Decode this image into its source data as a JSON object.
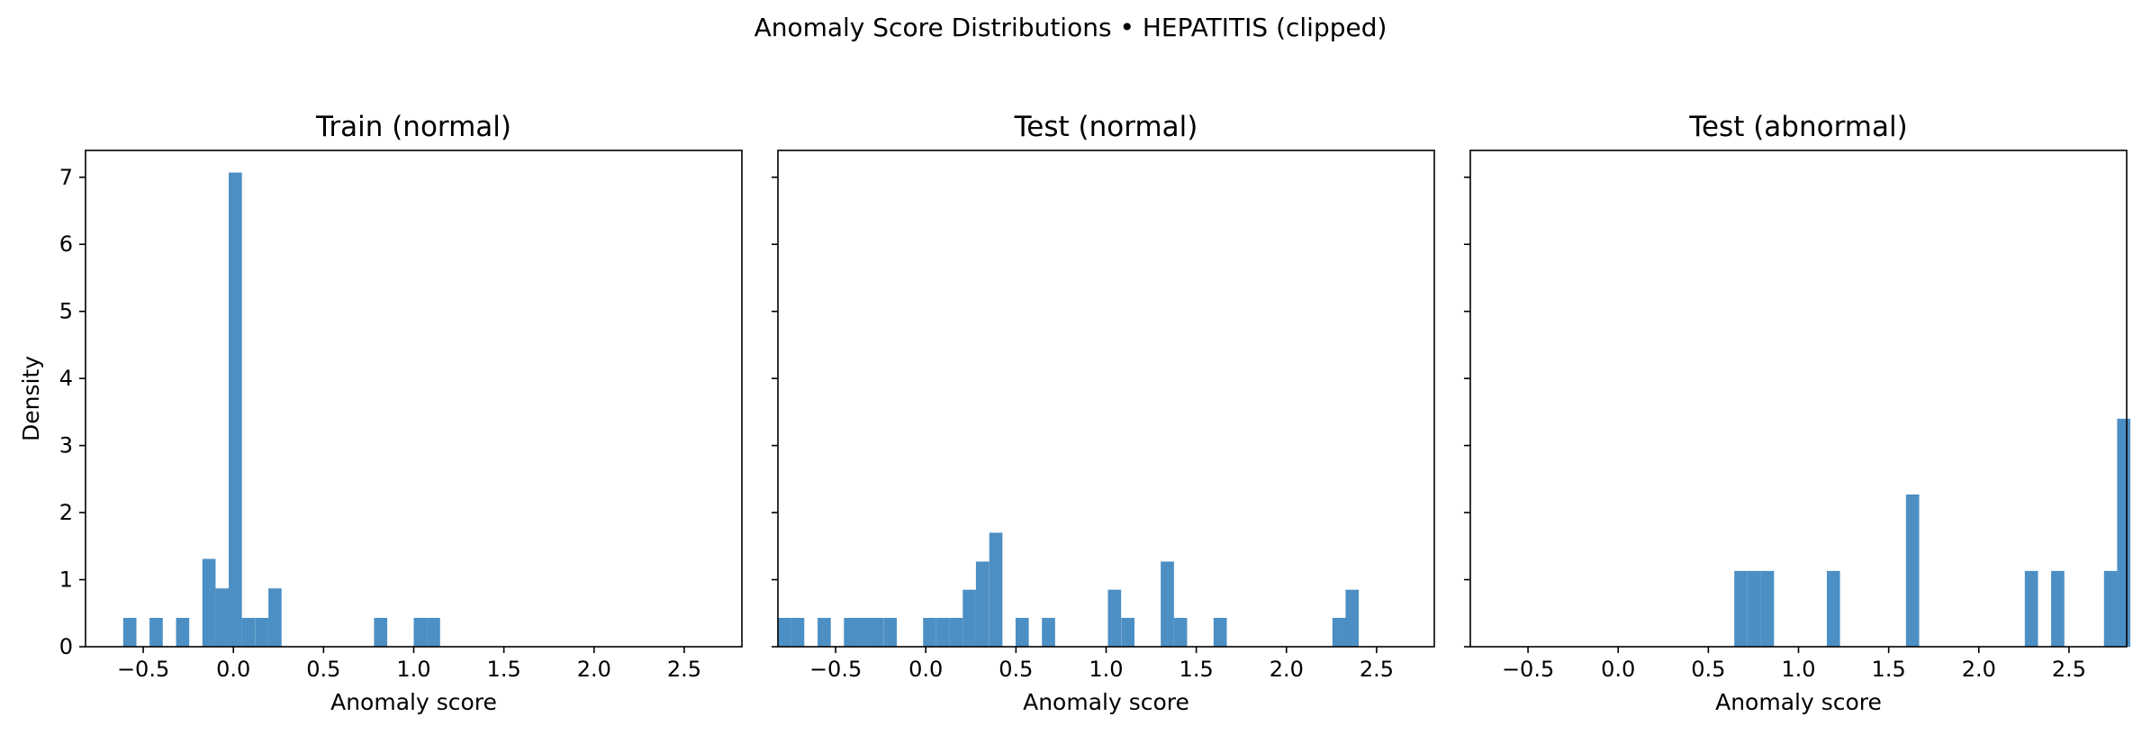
{
  "suptitle": "Anomaly Score Distributions • HEPATITIS (clipped)",
  "colors": {
    "bar": "#4c8fc4",
    "axis": "#000000"
  },
  "chart_data": [
    {
      "type": "bar",
      "title": "Train (normal)",
      "xlabel": "Anomaly score",
      "ylabel": "Density",
      "xlim": [
        -0.82,
        2.82
      ],
      "ylim": [
        0,
        7.4
      ],
      "xticks": [
        -0.5,
        0.0,
        0.5,
        1.0,
        1.5,
        2.0,
        2.5
      ],
      "xtick_labels": [
        "−0.5",
        "0.0",
        "0.5",
        "1.0",
        "1.5",
        "2.0",
        "2.5"
      ],
      "yticks": [
        0,
        1,
        2,
        3,
        4,
        5,
        6,
        7
      ],
      "ytick_labels": [
        "0",
        "1",
        "2",
        "3",
        "4",
        "5",
        "6",
        "7"
      ],
      "bin_width": 0.0732,
      "bins": [
        {
          "x0": -0.611,
          "h": 0.43
        },
        {
          "x0": -0.465,
          "h": 0.43
        },
        {
          "x0": -0.318,
          "h": 0.43
        },
        {
          "x0": -0.172,
          "h": 1.31
        },
        {
          "x0": -0.099,
          "h": 0.87
        },
        {
          "x0": -0.026,
          "h": 7.07
        },
        {
          "x0": 0.047,
          "h": 0.43
        },
        {
          "x0": 0.121,
          "h": 0.43
        },
        {
          "x0": 0.194,
          "h": 0.87
        },
        {
          "x0": 0.78,
          "h": 0.43
        },
        {
          "x0": 1.0,
          "h": 0.43
        },
        {
          "x0": 1.073,
          "h": 0.43
        }
      ]
    },
    {
      "type": "bar",
      "title": "Test (normal)",
      "xlabel": "Anomaly score",
      "ylabel": "",
      "xlim": [
        -0.82,
        2.82
      ],
      "ylim": [
        0,
        7.4
      ],
      "xticks": [
        -0.5,
        0.0,
        0.5,
        1.0,
        1.5,
        2.0,
        2.5
      ],
      "xtick_labels": [
        "−0.5",
        "0.0",
        "0.5",
        "1.0",
        "1.5",
        "2.0",
        "2.5"
      ],
      "yticks": [
        0,
        1,
        2,
        3,
        4,
        5,
        6,
        7
      ],
      "ytick_labels": [
        "",
        "",
        "",
        "",
        "",
        "",
        "",
        ""
      ],
      "bin_width": 0.0732,
      "bins": [
        {
          "x0": -0.82,
          "h": 0.43
        },
        {
          "x0": -0.747,
          "h": 0.43
        },
        {
          "x0": -0.6,
          "h": 0.43
        },
        {
          "x0": -0.454,
          "h": 0.43
        },
        {
          "x0": -0.381,
          "h": 0.43
        },
        {
          "x0": -0.308,
          "h": 0.43
        },
        {
          "x0": -0.234,
          "h": 0.43
        },
        {
          "x0": -0.015,
          "h": 0.43
        },
        {
          "x0": 0.059,
          "h": 0.43
        },
        {
          "x0": 0.132,
          "h": 0.43
        },
        {
          "x0": 0.205,
          "h": 0.85
        },
        {
          "x0": 0.278,
          "h": 1.27
        },
        {
          "x0": 0.352,
          "h": 1.7
        },
        {
          "x0": 0.498,
          "h": 0.43
        },
        {
          "x0": 0.644,
          "h": 0.43
        },
        {
          "x0": 1.01,
          "h": 0.85
        },
        {
          "x0": 1.084,
          "h": 0.43
        },
        {
          "x0": 1.303,
          "h": 1.27
        },
        {
          "x0": 1.376,
          "h": 0.43
        },
        {
          "x0": 1.596,
          "h": 0.43
        },
        {
          "x0": 2.255,
          "h": 0.43
        },
        {
          "x0": 2.328,
          "h": 0.85
        }
      ]
    },
    {
      "type": "bar",
      "title": "Test (abnormal)",
      "xlabel": "Anomaly score",
      "ylabel": "",
      "xlim": [
        -0.82,
        2.82
      ],
      "ylim": [
        0,
        7.4
      ],
      "xticks": [
        -0.5,
        0.0,
        0.5,
        1.0,
        1.5,
        2.0,
        2.5
      ],
      "xtick_labels": [
        "−0.5",
        "0.0",
        "0.5",
        "1.0",
        "1.5",
        "2.0",
        "2.5"
      ],
      "yticks": [
        0,
        1,
        2,
        3,
        4,
        5,
        6,
        7
      ],
      "ytick_labels": [
        "",
        "",
        "",
        "",
        "",
        "",
        "",
        ""
      ],
      "bin_width": 0.0732,
      "bins": [
        {
          "x0": 0.644,
          "h": 1.13
        },
        {
          "x0": 0.718,
          "h": 1.13
        },
        {
          "x0": 0.791,
          "h": 1.13
        },
        {
          "x0": 1.157,
          "h": 1.13
        },
        {
          "x0": 1.596,
          "h": 2.27
        },
        {
          "x0": 2.255,
          "h": 1.13
        },
        {
          "x0": 2.401,
          "h": 1.13
        },
        {
          "x0": 2.694,
          "h": 1.13
        },
        {
          "x0": 2.767,
          "h": 3.4
        }
      ]
    }
  ]
}
